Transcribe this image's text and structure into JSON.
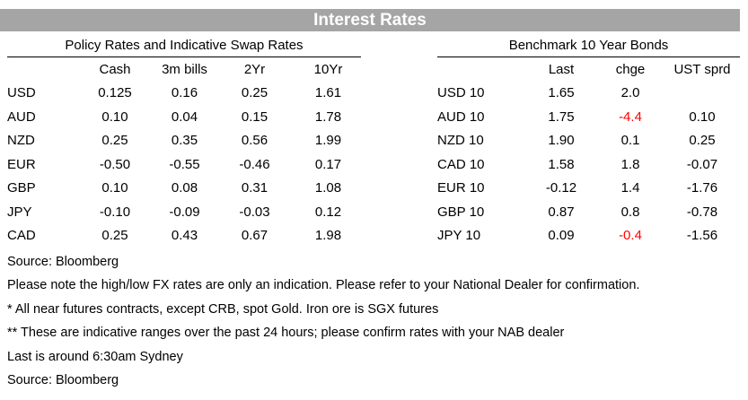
{
  "title": "Interest Rates",
  "policy": {
    "title": "Policy Rates and Indicative Swap Rates",
    "columns": [
      "Cash",
      "3m bills",
      "2Yr",
      "10Yr"
    ],
    "rows": [
      {
        "label": "USD",
        "values": [
          "0.125",
          "0.16",
          "0.25",
          "1.61"
        ]
      },
      {
        "label": "AUD",
        "values": [
          "0.10",
          "0.04",
          "0.15",
          "1.78"
        ]
      },
      {
        "label": "NZD",
        "values": [
          "0.25",
          "0.35",
          "0.56",
          "1.99"
        ]
      },
      {
        "label": "EUR",
        "values": [
          "-0.50",
          "-0.55",
          "-0.46",
          "0.17"
        ]
      },
      {
        "label": "GBP",
        "values": [
          "0.10",
          "0.08",
          "0.31",
          "1.08"
        ]
      },
      {
        "label": "JPY",
        "values": [
          "-0.10",
          "-0.09",
          "-0.03",
          "0.12"
        ]
      },
      {
        "label": "CAD",
        "values": [
          "0.25",
          "0.43",
          "0.67",
          "1.98"
        ]
      }
    ]
  },
  "bonds": {
    "title": "Benchmark 10 Year Bonds",
    "columns": [
      "Last",
      "chge",
      "UST sprd"
    ],
    "negative_color": "#ff0000",
    "rows": [
      {
        "label": "USD 10",
        "last": "1.65",
        "chge": "2.0",
        "chge_negative": false,
        "sprd": ""
      },
      {
        "label": "AUD 10",
        "last": "1.75",
        "chge": "-4.4",
        "chge_negative": true,
        "sprd": "0.10"
      },
      {
        "label": "NZD 10",
        "last": "1.90",
        "chge": "0.1",
        "chge_negative": false,
        "sprd": "0.25"
      },
      {
        "label": "CAD 10",
        "last": "1.58",
        "chge": "1.8",
        "chge_negative": false,
        "sprd": "-0.07"
      },
      {
        "label": "EUR 10",
        "last": "-0.12",
        "chge": "1.4",
        "chge_negative": false,
        "sprd": "-1.76"
      },
      {
        "label": "GBP 10",
        "last": "0.87",
        "chge": "0.8",
        "chge_negative": false,
        "sprd": "-0.78"
      },
      {
        "label": "JPY 10",
        "last": "0.09",
        "chge": "-0.4",
        "chge_negative": true,
        "sprd": "-1.56"
      }
    ]
  },
  "notes": [
    "Source: Bloomberg",
    "Please note the high/low FX rates are only an indication. Please refer to your National Dealer for confirmation.",
    "* All near futures contracts, except CRB, spot Gold.  Iron ore is SGX futures",
    "** These are indicative ranges over the past 24 hours; please confirm rates with your NAB dealer",
    "Last is around 6:30am Sydney",
    "Source: Bloomberg"
  ],
  "colors": {
    "banner_bg": "#a5a5a5",
    "banner_text": "#ffffff",
    "negative": "#ff0000"
  }
}
